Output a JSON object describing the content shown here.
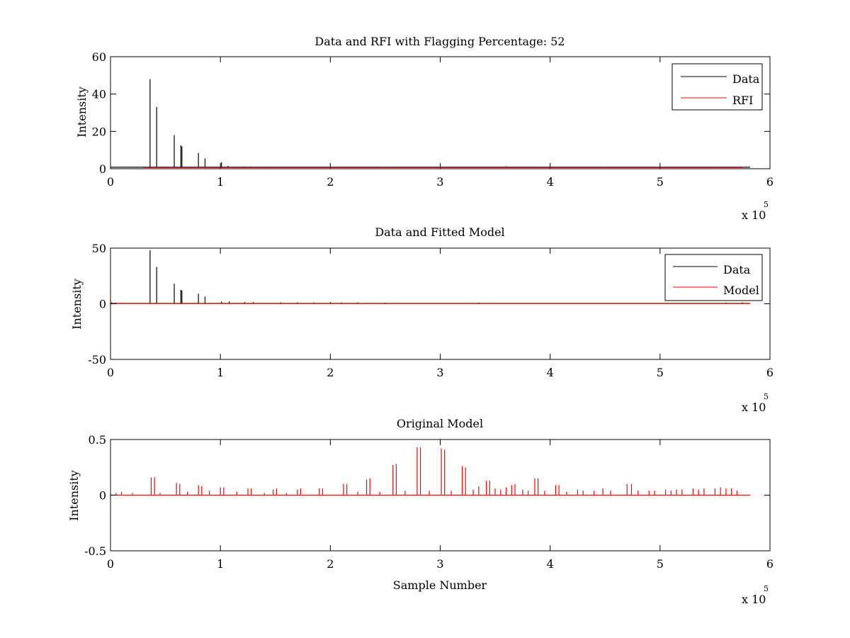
{
  "figure": {
    "background": "#ffffff",
    "axis_color": "#000000"
  },
  "exponent_label": {
    "base": "x 10",
    "power": "5"
  },
  "colors": {
    "data": "#000000",
    "rfi": "#ff0000",
    "model": "#ff0000"
  },
  "chart_data": [
    {
      "type": "line",
      "title": "Data and RFI with Flagging Percentage: 52",
      "xlabel": "",
      "ylabel": "Intensity",
      "xlim": [
        0,
        600000
      ],
      "ylim": [
        0,
        60
      ],
      "xticks": [
        0,
        100000,
        200000,
        300000,
        400000,
        500000,
        600000
      ],
      "xtick_labels": [
        "0",
        "1",
        "2",
        "3",
        "4",
        "5",
        "6"
      ],
      "yticks": [
        0,
        20,
        40,
        60
      ],
      "ytick_labels": [
        "0",
        "20",
        "40",
        "60"
      ],
      "legend_position": "top-right",
      "series": [
        {
          "name": "Data",
          "color": "#000000",
          "baseline": 0.8,
          "x_end": 582000,
          "spikes": [
            [
              36000,
              48
            ],
            [
              42000,
              33
            ],
            [
              58000,
              18
            ],
            [
              64000,
              12.5
            ],
            [
              65000,
              12
            ],
            [
              80000,
              8.5
            ],
            [
              86000,
              5.5
            ],
            [
              101000,
              3.5
            ],
            [
              107000,
              1.5
            ],
            [
              122000,
              1.2
            ],
            [
              128000,
              1.1
            ]
          ]
        },
        {
          "name": "RFI",
          "color": "#ff0000",
          "baseline": 0.6,
          "x_start": 30000,
          "x_end": 575000,
          "spikes": [
            [
              100000,
              1.2
            ],
            [
              150000,
              1.0
            ],
            [
              200000,
              1.2
            ],
            [
              250000,
              1.0
            ],
            [
              300000,
              1.1
            ],
            [
              360000,
              1.4
            ],
            [
              400000,
              1.0
            ],
            [
              450000,
              0.9
            ],
            [
              500000,
              1.0
            ],
            [
              550000,
              1.1
            ]
          ]
        }
      ]
    },
    {
      "type": "line",
      "title": "Data and Fitted Model",
      "xlabel": "",
      "ylabel": "Intensity",
      "xlim": [
        0,
        600000
      ],
      "ylim": [
        -50,
        50
      ],
      "xticks": [
        0,
        100000,
        200000,
        300000,
        400000,
        500000,
        600000
      ],
      "xtick_labels": [
        "0",
        "1",
        "2",
        "3",
        "4",
        "5",
        "6"
      ],
      "yticks": [
        -50,
        0,
        50
      ],
      "ytick_labels": [
        "-50",
        "0",
        "50"
      ],
      "legend_position": "top-right",
      "series": [
        {
          "name": "Data",
          "color": "#000000",
          "baseline": 0.3,
          "x_end": 582000,
          "spikes": [
            [
              36000,
              48
            ],
            [
              42000,
              33
            ],
            [
              58000,
              18
            ],
            [
              64000,
              12.5
            ],
            [
              65000,
              12
            ],
            [
              80000,
              9
            ],
            [
              86000,
              6.5
            ],
            [
              101000,
              2
            ],
            [
              108000,
              2
            ],
            [
              122000,
              1.5
            ],
            [
              130000,
              1.5
            ],
            [
              155000,
              1.2
            ],
            [
              170000,
              1.2
            ],
            [
              185000,
              1.2
            ],
            [
              200000,
              1.5
            ],
            [
              210000,
              1.2
            ],
            [
              225000,
              1.2
            ],
            [
              250000,
              1.0
            ],
            [
              335000,
              1.0
            ],
            [
              560000,
              1.0
            ],
            [
              575000,
              1.2
            ]
          ]
        },
        {
          "name": "Model",
          "color": "#ff0000",
          "baseline": 0.2,
          "x_end": 582000,
          "spikes": [
            [
              1000,
              1.5
            ],
            [
              5000,
              1.2
            ]
          ]
        }
      ]
    },
    {
      "type": "line",
      "title": "Original Model",
      "xlabel": "Sample Number",
      "ylabel": "Intensity",
      "xlim": [
        0,
        600000
      ],
      "ylim": [
        -0.5,
        0.5
      ],
      "xticks": [
        0,
        100000,
        200000,
        300000,
        400000,
        500000,
        600000
      ],
      "xtick_labels": [
        "0",
        "1",
        "2",
        "3",
        "4",
        "5",
        "6"
      ],
      "yticks": [
        -0.5,
        0,
        0.5
      ],
      "ytick_labels": [
        "-0.5",
        "0",
        "0.5"
      ],
      "legend_position": "none",
      "series": [
        {
          "color": "#ff0000",
          "baseline": 0,
          "x_end": 582000,
          "spikes": [
            [
              5000,
              0.02
            ],
            [
              10000,
              0.03
            ],
            [
              20000,
              0.02
            ],
            [
              37000,
              0.16
            ],
            [
              40000,
              0.16
            ],
            [
              45000,
              0.02
            ],
            [
              60000,
              0.11
            ],
            [
              63000,
              0.1
            ],
            [
              70000,
              0.03
            ],
            [
              80000,
              0.09
            ],
            [
              83000,
              0.08
            ],
            [
              90000,
              0.04
            ],
            [
              100000,
              0.07
            ],
            [
              103000,
              0.07
            ],
            [
              115000,
              0.03
            ],
            [
              125000,
              0.06
            ],
            [
              128000,
              0.06
            ],
            [
              140000,
              0.02
            ],
            [
              148000,
              0.05
            ],
            [
              151000,
              0.06
            ],
            [
              160000,
              0.02
            ],
            [
              170000,
              0.05
            ],
            [
              173000,
              0.06
            ],
            [
              190000,
              0.06
            ],
            [
              193000,
              0.06
            ],
            [
              212000,
              0.1
            ],
            [
              215000,
              0.1
            ],
            [
              225000,
              0.03
            ],
            [
              233000,
              0.14
            ],
            [
              236000,
              0.15
            ],
            [
              245000,
              0.03
            ],
            [
              257000,
              0.27
            ],
            [
              260000,
              0.28
            ],
            [
              268000,
              0.04
            ],
            [
              279000,
              0.43
            ],
            [
              282000,
              0.43
            ],
            [
              290000,
              0.04
            ],
            [
              301000,
              0.42
            ],
            [
              304000,
              0.41
            ],
            [
              310000,
              0.04
            ],
            [
              320000,
              0.26
            ],
            [
              323000,
              0.25
            ],
            [
              330000,
              0.05
            ],
            [
              335000,
              0.08
            ],
            [
              342000,
              0.13
            ],
            [
              345000,
              0.13
            ],
            [
              350000,
              0.06
            ],
            [
              355000,
              0.05
            ],
            [
              360000,
              0.07
            ],
            [
              365000,
              0.09
            ],
            [
              368000,
              0.1
            ],
            [
              375000,
              0.05
            ],
            [
              380000,
              0.04
            ],
            [
              386000,
              0.15
            ],
            [
              389000,
              0.15
            ],
            [
              395000,
              0.04
            ],
            [
              405000,
              0.09
            ],
            [
              408000,
              0.09
            ],
            [
              415000,
              0.03
            ],
            [
              425000,
              0.05
            ],
            [
              430000,
              0.04
            ],
            [
              440000,
              0.04
            ],
            [
              448000,
              0.06
            ],
            [
              455000,
              0.04
            ],
            [
              470000,
              0.1
            ],
            [
              474000,
              0.1
            ],
            [
              480000,
              0.04
            ],
            [
              490000,
              0.04
            ],
            [
              495000,
              0.04
            ],
            [
              505000,
              0.05
            ],
            [
              510000,
              0.04
            ],
            [
              515000,
              0.05
            ],
            [
              520000,
              0.05
            ],
            [
              530000,
              0.06
            ],
            [
              535000,
              0.05
            ],
            [
              540000,
              0.06
            ],
            [
              550000,
              0.06
            ],
            [
              555000,
              0.07
            ],
            [
              560000,
              0.06
            ],
            [
              565000,
              0.06
            ],
            [
              570000,
              0.04
            ]
          ]
        }
      ]
    }
  ]
}
